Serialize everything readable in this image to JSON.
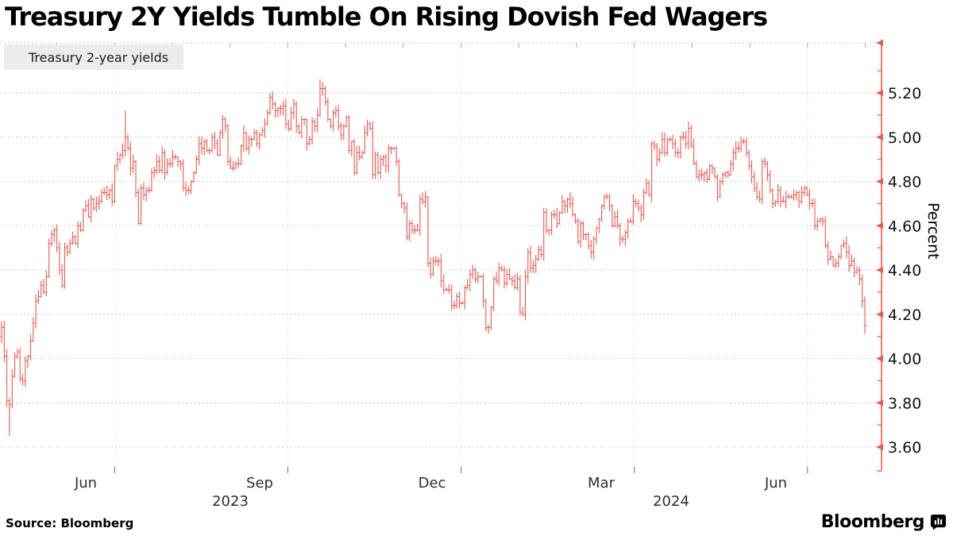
{
  "header": {
    "title": "Treasury 2Y Yields Tumble On Rising Dovish Fed Wagers"
  },
  "legend": {
    "label": "Treasury 2-year yields",
    "swatch_color": "#ee574e"
  },
  "footer": {
    "source": "Source: Bloomberg",
    "brand": "Bloomberg"
  },
  "chart_data": {
    "type": "ohlc-bar",
    "title": "Treasury 2Y Yields Tumble On Rising Dovish Fed Wagers",
    "series_name": "Treasury 2-year yields",
    "ylabel": "Percent",
    "ylim": [
      3.49,
      5.46
    ],
    "x_start": "2023-05-01",
    "x_end": "2024-08-01",
    "freq": "weekdays",
    "color": "#ee574e",
    "grid": true,
    "legend_position": "top-left",
    "y_tick_labels": [
      "5.20",
      "5.00",
      "4.80",
      "4.60",
      "4.40",
      "4.20",
      "4.00",
      "3.80",
      "3.60"
    ],
    "y_gridlines": [
      5.4,
      5.2,
      5.0,
      4.8,
      4.6,
      4.4,
      4.2,
      4.0,
      3.8,
      3.6
    ],
    "y_minor_ticks": [
      5.3,
      5.1,
      4.9,
      4.7,
      4.5,
      4.3,
      4.1,
      3.9,
      3.7
    ],
    "x_month_labels": [
      "Jun",
      "Sep",
      "Dec",
      "Mar",
      "Jun"
    ],
    "x_year_labels": [
      "2023",
      "2024"
    ],
    "open_first": 4.1,
    "closes": [
      4.14,
      4.01,
      3.81,
      3.79,
      3.92,
      4.01,
      4.03,
      3.91,
      3.9,
      3.99,
      4.01,
      4.08,
      4.16,
      4.26,
      4.28,
      4.33,
      4.3,
      4.37,
      4.52,
      4.56,
      4.58,
      4.5,
      4.4,
      4.33,
      4.5,
      4.48,
      4.52,
      4.55,
      4.52,
      4.6,
      4.58,
      4.67,
      4.69,
      4.64,
      4.72,
      4.68,
      4.7,
      4.71,
      4.75,
      4.75,
      4.74,
      4.76,
      4.71,
      4.87,
      4.9,
      4.92,
      4.94,
      5.0,
      4.95,
      4.86,
      4.89,
      4.75,
      4.61,
      4.77,
      4.74,
      4.76,
      4.76,
      4.84,
      4.85,
      4.89,
      4.85,
      4.93,
      4.84,
      4.88,
      4.88,
      4.91,
      4.91,
      4.89,
      4.88,
      4.77,
      4.76,
      4.76,
      4.8,
      4.84,
      4.9,
      4.97,
      4.95,
      4.98,
      4.94,
      4.94,
      5.0,
      4.97,
      4.92,
      5.02,
      5.08,
      5.05,
      4.89,
      4.86,
      4.86,
      4.88,
      4.88,
      4.96,
      5.02,
      4.95,
      4.99,
      4.99,
      5.02,
      4.97,
      5.01,
      5.03,
      5.06,
      5.11,
      5.18,
      5.15,
      5.12,
      5.13,
      5.13,
      5.14,
      5.06,
      5.04,
      5.11,
      5.15,
      5.05,
      5.02,
      5.08,
      5.08,
      4.97,
      4.99,
      5.07,
      5.05,
      5.1,
      5.22,
      5.22,
      5.16,
      5.08,
      5.05,
      5.11,
      5.12,
      5.05,
      5.01,
      5.05,
      5.09,
      4.94,
      4.98,
      4.84,
      4.93,
      4.91,
      4.93,
      5.02,
      5.06,
      5.04,
      4.83,
      4.92,
      4.84,
      4.9,
      4.91,
      4.87,
      4.95,
      4.95,
      4.95,
      4.89,
      4.74,
      4.7,
      4.68,
      4.55,
      4.61,
      4.58,
      4.58,
      4.58,
      4.72,
      4.71,
      4.73,
      4.43,
      4.38,
      4.44,
      4.44,
      4.44,
      4.35,
      4.31,
      4.31,
      4.31,
      4.24,
      4.24,
      4.28,
      4.25,
      4.25,
      4.32,
      4.33,
      4.38,
      4.4,
      4.36,
      4.37,
      4.37,
      4.26,
      4.14,
      4.14,
      4.23,
      4.36,
      4.35,
      4.41,
      4.4,
      4.34,
      4.38,
      4.36,
      4.35,
      4.32,
      4.36,
      4.21,
      4.2,
      4.37,
      4.48,
      4.41,
      4.42,
      4.45,
      4.49,
      4.47,
      4.66,
      4.58,
      4.58,
      4.65,
      4.65,
      4.61,
      4.66,
      4.71,
      4.69,
      4.72,
      4.7,
      4.65,
      4.62,
      4.53,
      4.61,
      4.56,
      4.56,
      4.51,
      4.48,
      4.54,
      4.59,
      4.63,
      4.69,
      4.73,
      4.73,
      4.69,
      4.6,
      4.64,
      4.6,
      4.54,
      4.54,
      4.57,
      4.62,
      4.62,
      4.71,
      4.7,
      4.68,
      4.65,
      4.75,
      4.79,
      4.74,
      4.97,
      4.96,
      4.9,
      4.93,
      4.99,
      4.93,
      4.99,
      4.99,
      4.97,
      4.93,
      4.93,
      5.0,
      5.0,
      4.97,
      5.04,
      4.96,
      4.88,
      4.82,
      4.83,
      4.83,
      4.84,
      4.81,
      4.87,
      4.86,
      4.82,
      4.73,
      4.8,
      4.83,
      4.84,
      4.83,
      4.88,
      4.93,
      4.95,
      4.95,
      4.98,
      4.98,
      4.93,
      4.87,
      4.82,
      4.77,
      4.73,
      4.72,
      4.89,
      4.88,
      4.83,
      4.76,
      4.7,
      4.71,
      4.76,
      4.71,
      4.71,
      4.73,
      4.73,
      4.73,
      4.74,
      4.75,
      4.71,
      4.75,
      4.77,
      4.74,
      4.7,
      4.7,
      4.6,
      4.62,
      4.63,
      4.62,
      4.51,
      4.45,
      4.46,
      4.42,
      4.43,
      4.46,
      4.51,
      4.52,
      4.48,
      4.42,
      4.44,
      4.39,
      4.4,
      4.36,
      4.26,
      4.15
    ],
    "extremes": [
      {
        "i": 3,
        "low": 3.65
      },
      {
        "i": 47,
        "high": 5.12
      },
      {
        "i": 102,
        "high": 5.2
      },
      {
        "i": 121,
        "high": 5.26
      },
      {
        "i": 122,
        "high": 5.25
      },
      {
        "i": 328,
        "low": 4.11
      }
    ]
  }
}
